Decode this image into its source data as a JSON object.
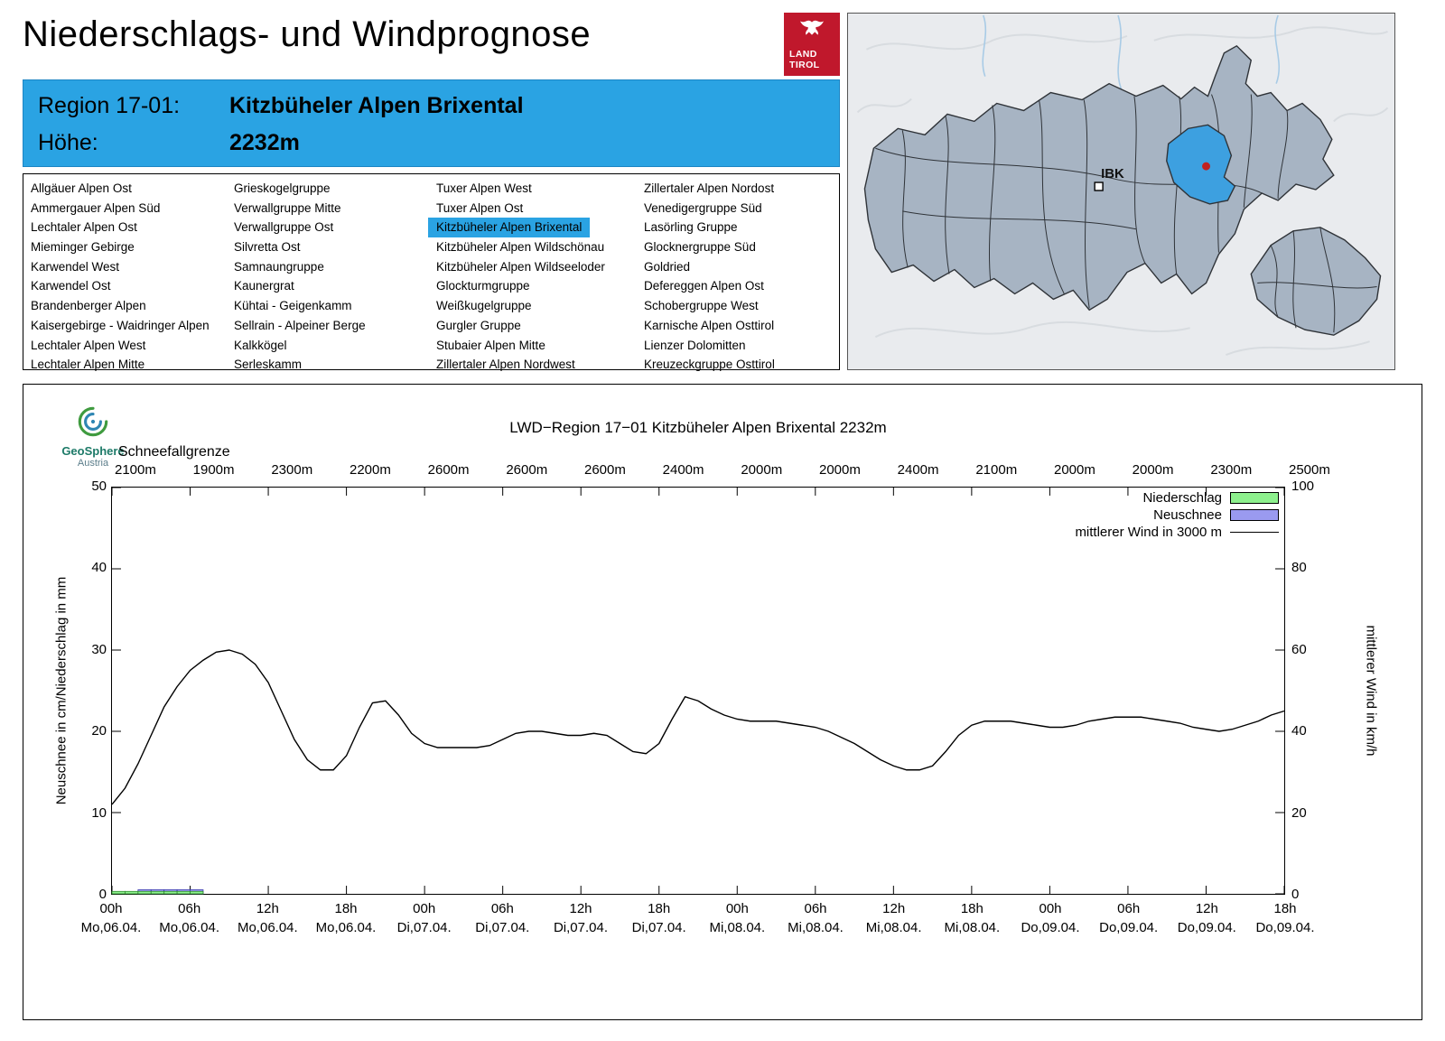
{
  "header": {
    "title": "Niederschlags- und Windprognose",
    "logo_line1": "LAND",
    "logo_line2": "TIROL"
  },
  "region_info": {
    "region_label": "Region 17-01:",
    "region_value": "Kitzbüheler Alpen Brixental",
    "hoehe_label": "Höhe:",
    "hoehe_value": "2232m"
  },
  "region_list": {
    "selected": "Kitzbüheler Alpen Brixental",
    "columns": [
      [
        "Allgäuer Alpen Ost",
        "Ammergauer Alpen Süd",
        "Lechtaler Alpen Ost",
        "Mieminger Gebirge",
        "Karwendel West",
        "Karwendel Ost",
        "Brandenberger Alpen",
        "Kaisergebirge - Waidringer Alpen",
        "Lechtaler Alpen West",
        "Lechtaler Alpen Mitte"
      ],
      [
        "Grieskogelgruppe",
        "Verwallgruppe Mitte",
        "Verwallgruppe Ost",
        "Silvretta Ost",
        "Samnaungruppe",
        "Kaunergrat",
        "Kühtai - Geigenkamm",
        "Sellrain - Alpeiner Berge",
        "Kalkkögel",
        "Serleskamm"
      ],
      [
        "Tuxer Alpen West",
        "Tuxer Alpen Ost",
        "Kitzbüheler Alpen Brixental",
        "Kitzbüheler Alpen Wildschönau",
        "Kitzbüheler Alpen Wildseeloder",
        "Glockturmgruppe",
        "Weißkugelgruppe",
        "Gurgler Gruppe",
        "Stubaier Alpen Mitte",
        "Zillertaler Alpen Nordwest"
      ],
      [
        "Zillertaler Alpen Nordost",
        "Venedigergruppe Süd",
        "Lasörling Gruppe",
        "Glocknergruppe Süd",
        "Goldried",
        "Defereggen Alpen Ost",
        "Schobergruppe West",
        "Karnische Alpen Osttirol",
        "Lienzer Dolomitten",
        "Kreuzeckgruppe Osttirol"
      ]
    ]
  },
  "map": {
    "city_label": "IBK",
    "region_fill": "#a7b4c3",
    "highlight_color": "#3da0e0",
    "marker_color": "#c02020"
  },
  "geosphere": {
    "name": "GeoSphere",
    "sub": "Austria"
  },
  "chart_data": {
    "type": "line",
    "title": "LWD−Region 17−01 Kitzbüheler Alpen Brixental 2232m",
    "schneefallgrenze_label": "Schneefallgrenze",
    "schneefallgrenze_values": [
      "2100m",
      "1900m",
      "2300m",
      "2200m",
      "2600m",
      "2600m",
      "2600m",
      "2400m",
      "2000m",
      "2000m",
      "2400m",
      "2100m",
      "2000m",
      "2000m",
      "2300m",
      "2500m"
    ],
    "ylabel_left": "Neuschnee in cm/Niederschlag in mm",
    "ylabel_right": "mittlerer Wind in km/h",
    "ylim_left": [
      0,
      50
    ],
    "ylim_right": [
      0,
      100
    ],
    "yticks_left": [
      0,
      10,
      20,
      30,
      40,
      50
    ],
    "yticks_right": [
      0,
      20,
      40,
      60,
      80,
      100
    ],
    "total_hours": 90,
    "xtick_step_hours": 6,
    "x_hour_labels": [
      "00h",
      "06h",
      "12h",
      "18h",
      "00h",
      "06h",
      "12h",
      "18h",
      "00h",
      "06h",
      "12h",
      "18h",
      "00h",
      "06h",
      "12h",
      "18h"
    ],
    "x_date_labels": [
      "Mo,06.04.",
      "Mo,06.04.",
      "Mo,06.04.",
      "Mo,06.04.",
      "Di,07.04.",
      "Di,07.04.",
      "Di,07.04.",
      "Di,07.04.",
      "Mi,08.04.",
      "Mi,08.04.",
      "Mi,08.04.",
      "Mi,08.04.",
      "Do,09.04.",
      "Do,09.04.",
      "Do,09.04.",
      "Do,09.04."
    ],
    "legend": [
      {
        "label": "Niederschlag",
        "type": "box",
        "color": "#8df08d"
      },
      {
        "label": "Neuschnee",
        "type": "box",
        "color": "#9a9af0"
      },
      {
        "label": "mittlerer Wind in 3000 m",
        "type": "line",
        "color": "#000000"
      }
    ],
    "wind_series": {
      "name": "mittlerer Wind in 3000 m",
      "unit": "km/h",
      "values_kmh": [
        22,
        26,
        32,
        39,
        46,
        51,
        55,
        57.5,
        59.5,
        60,
        59,
        56.5,
        52,
        45,
        38,
        33,
        30.5,
        30.5,
        34,
        41,
        47,
        47.5,
        44,
        39.5,
        37,
        36,
        36,
        36,
        36,
        36.5,
        38,
        39.5,
        40,
        40,
        39.5,
        39,
        39,
        39.5,
        39,
        37,
        35,
        34.5,
        37,
        43,
        48.5,
        47.5,
        45.5,
        44,
        43,
        42.5,
        42.5,
        42.5,
        42,
        41.5,
        41,
        40,
        38.5,
        37,
        35,
        33,
        31.5,
        30.5,
        30.5,
        31.5,
        35,
        39,
        41.5,
        42.5,
        42.5,
        42.5,
        42,
        41.5,
        41,
        41,
        41.5,
        42.5,
        43,
        43.5,
        43.5,
        43.5,
        43,
        42.5,
        42,
        41,
        40.5,
        40,
        40.5,
        41.5,
        42.5,
        44,
        45
      ]
    },
    "niederschlag_bars": {
      "unit": "mm",
      "x_hours": [
        0,
        1,
        2,
        3,
        4,
        5,
        6
      ],
      "values": [
        0.3,
        0.3,
        0.3,
        0.3,
        0.3,
        0.3,
        0.3
      ]
    },
    "neuschnee_bars": {
      "unit": "cm",
      "x_hours": [
        2,
        3,
        4,
        5,
        6
      ],
      "values": [
        0.5,
        0.5,
        0.5,
        0.5,
        0.5
      ]
    }
  }
}
